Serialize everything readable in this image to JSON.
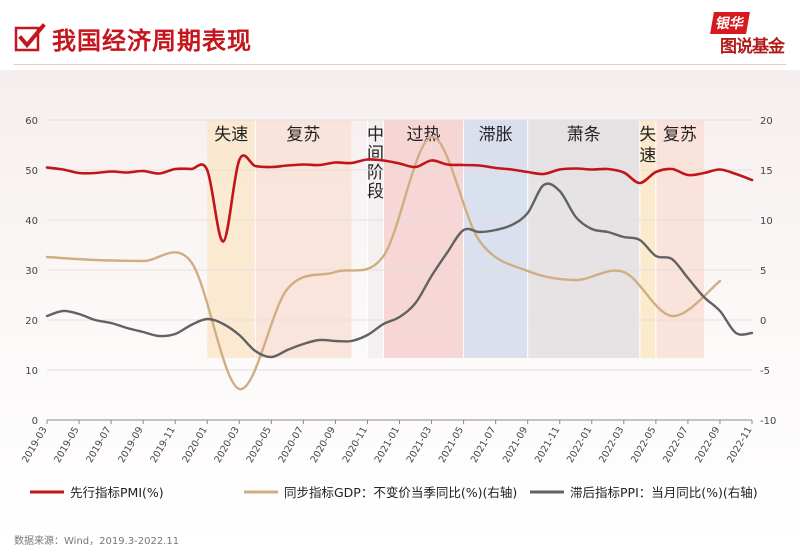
{
  "header": {
    "title": "我国经济周期表现",
    "logo_top": "银华",
    "logo_bottom": "图说基金"
  },
  "source": "数据来源：Wind，2019.3-2022.11",
  "colors": {
    "pmi": "#c0151b",
    "gdp": "#cfaf82",
    "ppi": "#626262",
    "title": "#c4161c"
  },
  "chart_data": {
    "type": "line",
    "title": "",
    "x_start": "2019-03",
    "x_end": "2022-11",
    "x_ticks": [
      "2019-03",
      "2019-05",
      "2019-07",
      "2019-09",
      "2019-11",
      "2020-01",
      "2020-03",
      "2020-05",
      "2020-07",
      "2020-09",
      "2020-11",
      "2021-01",
      "2021-03",
      "2021-05",
      "2021-07",
      "2021-09",
      "2021-11",
      "2022-01",
      "2022-03",
      "2022-05",
      "2022-07",
      "2022-09",
      "2022-11"
    ],
    "y_left": {
      "range": [
        0,
        60
      ],
      "ticks": [
        0,
        10,
        20,
        30,
        40,
        50,
        60
      ]
    },
    "y_right": {
      "range": [
        -10,
        20
      ],
      "ticks": [
        -10,
        -5,
        0,
        5,
        10,
        15,
        20
      ]
    },
    "legend_position": "bottom",
    "phases": [
      {
        "label": "失速",
        "start": "2020-01",
        "end": "2020-04",
        "color": "#fbe6cb"
      },
      {
        "label": "复苏",
        "start": "2020-04",
        "end": "2020-10",
        "color": "#f9e2d8"
      },
      {
        "label": "中间阶段",
        "start": "2020-11",
        "end": "2020-12",
        "color": "#f3efef"
      },
      {
        "label": "过热",
        "start": "2020-12",
        "end": "2021-05",
        "color": "#f6d0d0"
      },
      {
        "label": "滞胀",
        "start": "2021-05",
        "end": "2021-09",
        "color": "#d4dcec"
      },
      {
        "label": "萧条",
        "start": "2021-09",
        "end": "2022-04",
        "color": "#e3dfe0"
      },
      {
        "label": "失速",
        "start": "2022-04",
        "end": "2022-05",
        "color": "#fbe8c6"
      },
      {
        "label": "复苏",
        "start": "2022-05",
        "end": "2022-08",
        "color": "#f9dfd6"
      }
    ],
    "series": [
      {
        "name": "先行指标PMI(%)",
        "axis": "left",
        "color": "#c0151b",
        "x": [
          "2019-03",
          "2019-04",
          "2019-05",
          "2019-06",
          "2019-07",
          "2019-08",
          "2019-09",
          "2019-10",
          "2019-11",
          "2019-12",
          "2020-01",
          "2020-02",
          "2020-03",
          "2020-04",
          "2020-05",
          "2020-06",
          "2020-07",
          "2020-08",
          "2020-09",
          "2020-10",
          "2020-11",
          "2020-12",
          "2021-01",
          "2021-02",
          "2021-03",
          "2021-04",
          "2021-05",
          "2021-06",
          "2021-07",
          "2021-08",
          "2021-09",
          "2021-10",
          "2021-11",
          "2021-12",
          "2022-01",
          "2022-02",
          "2022-03",
          "2022-04",
          "2022-05",
          "2022-06",
          "2022-07",
          "2022-08",
          "2022-09",
          "2022-10",
          "2022-11"
        ],
        "values": [
          50.5,
          50.1,
          49.4,
          49.4,
          49.7,
          49.5,
          49.8,
          49.3,
          50.2,
          50.2,
          50.0,
          35.7,
          52.0,
          50.8,
          50.6,
          50.9,
          51.1,
          51.0,
          51.5,
          51.4,
          52.1,
          51.9,
          51.3,
          50.6,
          51.9,
          51.1,
          51.0,
          50.9,
          50.4,
          50.1,
          49.6,
          49.2,
          50.1,
          50.3,
          50.1,
          50.2,
          49.5,
          47.4,
          49.6,
          50.2,
          49.0,
          49.4,
          50.1,
          49.2,
          48.0
        ]
      },
      {
        "name": "同步指标GDP：不变价当季同比(%)(右轴)",
        "axis": "right",
        "color": "#cfaf82",
        "x": [
          "2019-03",
          "2019-06",
          "2019-09",
          "2019-12",
          "2020-03",
          "2020-06",
          "2020-09",
          "2020-12",
          "2021-03",
          "2021-06",
          "2021-09",
          "2021-12",
          "2022-03",
          "2022-06",
          "2022-09"
        ],
        "values": [
          6.3,
          6.0,
          5.9,
          5.8,
          -6.9,
          3.1,
          4.8,
          6.4,
          18.3,
          7.9,
          4.9,
          4.0,
          4.8,
          0.4,
          3.9
        ]
      },
      {
        "name": "滞后指标PPI：当月同比(%)(右轴)",
        "axis": "right",
        "color": "#626262",
        "x": [
          "2019-03",
          "2019-04",
          "2019-05",
          "2019-06",
          "2019-07",
          "2019-08",
          "2019-09",
          "2019-10",
          "2019-11",
          "2019-12",
          "2020-01",
          "2020-02",
          "2020-03",
          "2020-04",
          "2020-05",
          "2020-06",
          "2020-07",
          "2020-08",
          "2020-09",
          "2020-10",
          "2020-11",
          "2020-12",
          "2021-01",
          "2021-02",
          "2021-03",
          "2021-04",
          "2021-05",
          "2021-06",
          "2021-07",
          "2021-08",
          "2021-09",
          "2021-10",
          "2021-11",
          "2021-12",
          "2022-01",
          "2022-02",
          "2022-03",
          "2022-04",
          "2022-05",
          "2022-06",
          "2022-07",
          "2022-08",
          "2022-09",
          "2022-10",
          "2022-11"
        ],
        "values": [
          0.4,
          0.9,
          0.6,
          0.0,
          -0.3,
          -0.8,
          -1.2,
          -1.6,
          -1.4,
          -0.5,
          0.1,
          -0.4,
          -1.5,
          -3.1,
          -3.7,
          -3.0,
          -2.4,
          -2.0,
          -2.1,
          -2.1,
          -1.5,
          -0.4,
          0.3,
          1.7,
          4.4,
          6.8,
          9.0,
          8.8,
          9.0,
          9.5,
          10.7,
          13.5,
          12.9,
          10.3,
          9.1,
          8.8,
          8.3,
          8.0,
          6.4,
          6.1,
          4.2,
          2.3,
          0.9,
          -1.3,
          -1.3
        ]
      }
    ]
  }
}
